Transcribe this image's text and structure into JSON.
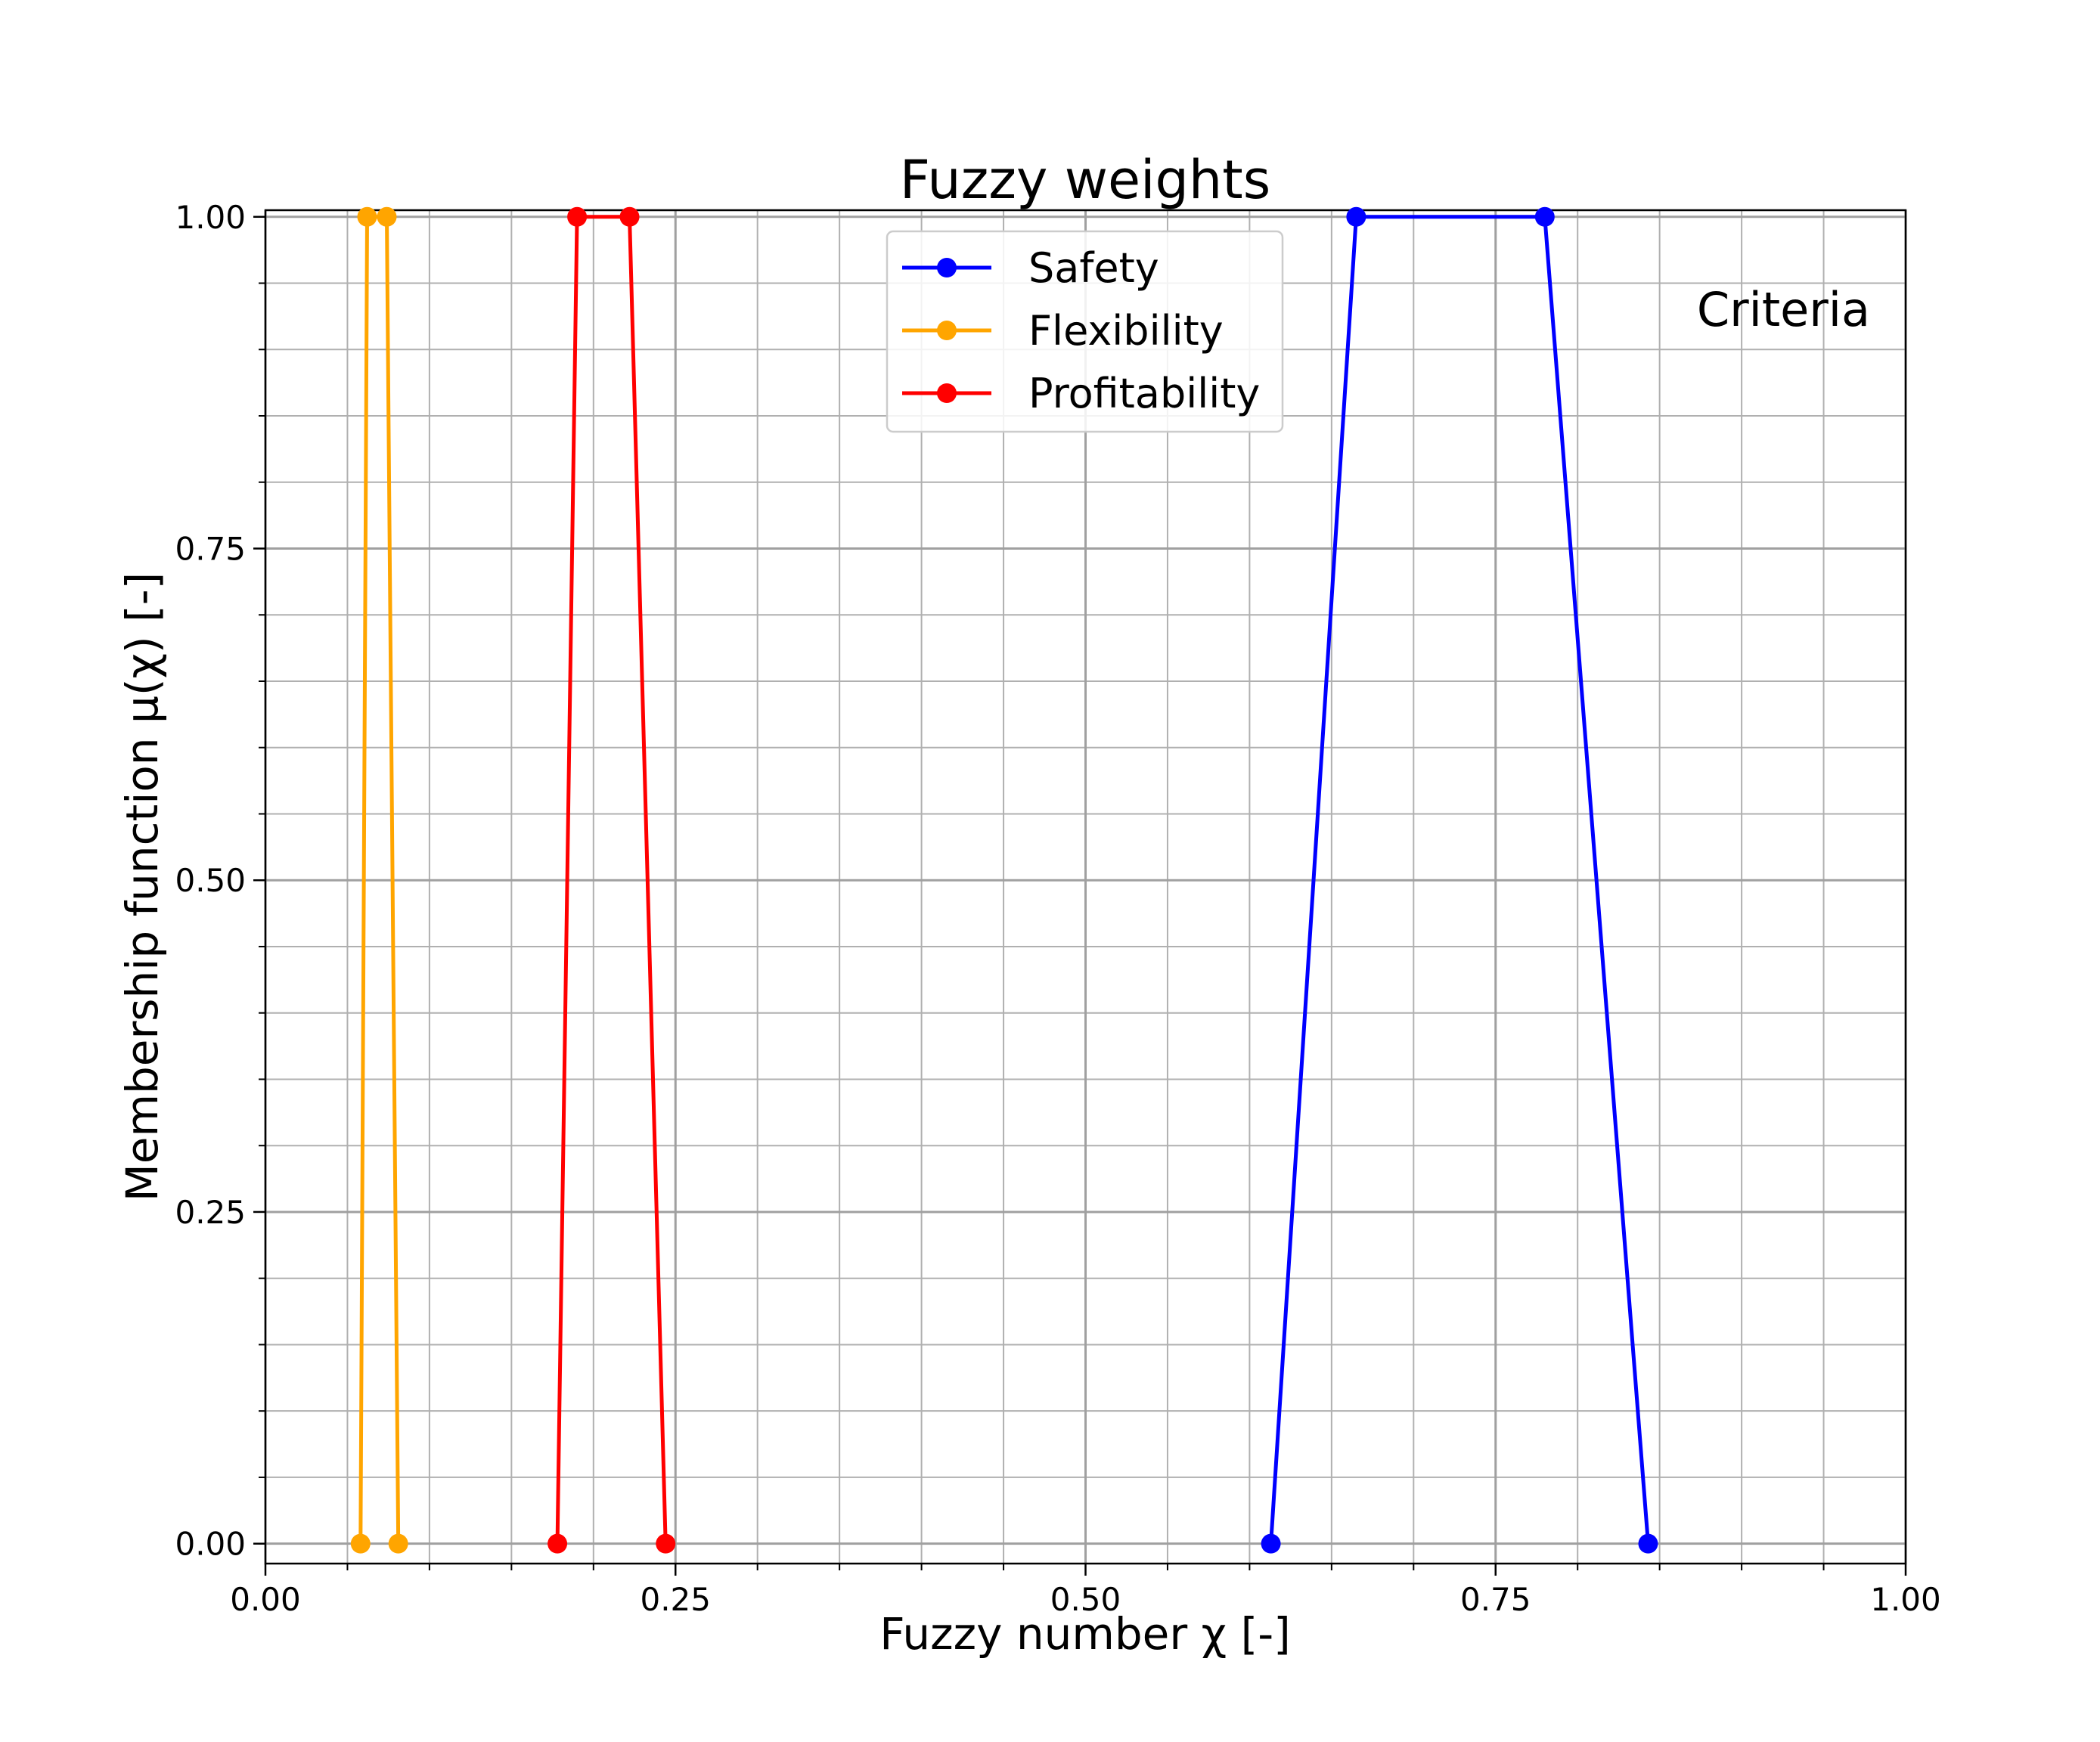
{
  "chart_data": {
    "type": "line",
    "title": "Fuzzy weights",
    "xlabel": "Fuzzy number χ [-]",
    "ylabel": "Membership function μ(χ) [-]",
    "xlim": [
      0.0,
      1.0
    ],
    "ylim": [
      -0.015,
      1.005
    ],
    "x_ticks": [
      0.0,
      0.25,
      0.5,
      0.75,
      1.0
    ],
    "x_tick_labels": [
      "0.00",
      "0.25",
      "0.50",
      "0.75",
      "1.00"
    ],
    "x_minor_step": 0.05,
    "y_ticks": [
      0.0,
      0.25,
      0.5,
      0.75,
      1.0
    ],
    "y_tick_labels": [
      "0.00",
      "0.25",
      "0.50",
      "0.75",
      "1.00"
    ],
    "y_minor_step": 0.05,
    "grid": true,
    "legend_position": "top-center",
    "annotation": "Criteria",
    "series": [
      {
        "name": "Safety",
        "color": "#0000ff",
        "x": [
          0.613,
          0.665,
          0.78,
          0.843
        ],
        "y": [
          0,
          1,
          1,
          0
        ]
      },
      {
        "name": "Flexibility",
        "color": "#ffa500",
        "x": [
          0.058,
          0.062,
          0.074,
          0.081
        ],
        "y": [
          0,
          1,
          1,
          0
        ]
      },
      {
        "name": "Profitability",
        "color": "#ff0000",
        "x": [
          0.178,
          0.19,
          0.222,
          0.244
        ],
        "y": [
          0,
          1,
          1,
          0
        ]
      }
    ]
  }
}
